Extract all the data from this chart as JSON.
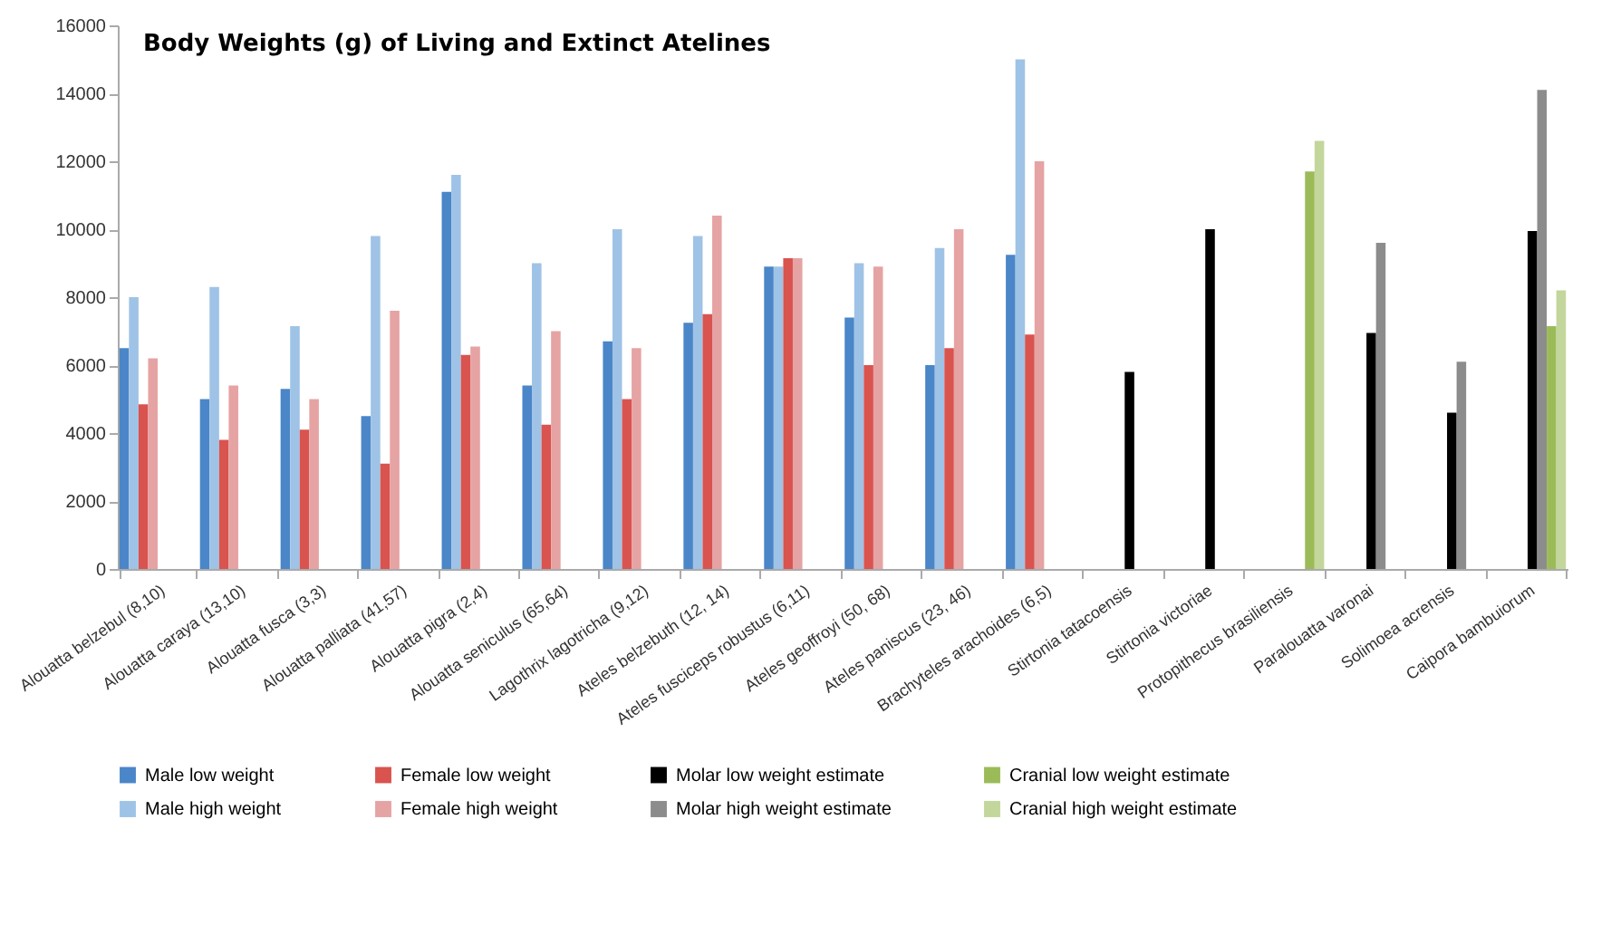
{
  "chart_data": {
    "type": "bar",
    "title": "Body Weights (g) of Living and Extinct Atelines",
    "categories": [
      "Alouatta belzebul (8,10)",
      "Alouatta caraya (13,10)",
      "Alouatta fusca (3,3)",
      "Alouatta palliata (41,57)",
      "Alouatta pigra (2,4)",
      "Alouatta seniculus (65,64)",
      "Lagothrix lagotricha (9,12)",
      "Ateles belzebuth (12, 14)",
      "Ateles fusciceps robustus (6,11)",
      "Ateles geoffroyi (50, 68)",
      "Ateles paniscus (23, 46)",
      "Brachyteles arachoides (6,5)",
      "Stirtonia tatacoensis",
      "Stirtonia victoriae",
      "Protopithecus brasiliensis",
      "Paralouatta varonai",
      "Solimoea acrensis",
      "Caipora bambuiorum"
    ],
    "series": [
      {
        "name": "Male low weight",
        "color": "#4a86c8",
        "values": [
          6500,
          5000,
          5300,
          4500,
          11100,
          5400,
          6700,
          7250,
          8900,
          7400,
          6000,
          9250,
          null,
          null,
          null,
          null,
          null,
          null
        ]
      },
      {
        "name": "Male high weight",
        "color": "#9fc3e6",
        "values": [
          8000,
          8300,
          7150,
          9800,
          11600,
          9000,
          10000,
          9800,
          8900,
          9000,
          9450,
          15000,
          null,
          null,
          null,
          null,
          null,
          null
        ]
      },
      {
        "name": "Female low weight",
        "color": "#d9534f",
        "values": [
          4850,
          3800,
          4100,
          3100,
          6300,
          4250,
          5000,
          7500,
          9150,
          6000,
          6500,
          6900,
          null,
          null,
          null,
          null,
          null,
          null
        ]
      },
      {
        "name": "Female high weight",
        "color": "#e6a3a3",
        "values": [
          6200,
          5400,
          5000,
          7600,
          6550,
          7000,
          6500,
          10400,
          9150,
          8900,
          10000,
          12000,
          null,
          null,
          null,
          null,
          null,
          null
        ]
      },
      {
        "name": "Molar low weight estimate",
        "color": "#000000",
        "values": [
          null,
          null,
          null,
          null,
          null,
          null,
          null,
          null,
          null,
          null,
          null,
          null,
          5800,
          10000,
          null,
          6950,
          4600,
          9950
        ]
      },
      {
        "name": "Molar high weight estimate",
        "color": "#8c8c8c",
        "values": [
          null,
          null,
          null,
          null,
          null,
          null,
          null,
          null,
          null,
          null,
          null,
          null,
          null,
          null,
          null,
          9600,
          6100,
          14100
        ]
      },
      {
        "name": "Cranial low weight estimate",
        "color": "#9bbb59",
        "values": [
          null,
          null,
          null,
          null,
          null,
          null,
          null,
          null,
          null,
          null,
          null,
          null,
          null,
          null,
          11700,
          null,
          null,
          7150
        ]
      },
      {
        "name": "Cranial high weight estimate",
        "color": "#c3d69b",
        "values": [
          null,
          null,
          null,
          null,
          null,
          null,
          null,
          null,
          null,
          null,
          null,
          null,
          null,
          null,
          12600,
          null,
          null,
          8200
        ]
      }
    ],
    "ylim": [
      0,
      16000
    ],
    "yticks": [
      0,
      2000,
      4000,
      6000,
      8000,
      10000,
      12000,
      14000,
      16000
    ],
    "grid": false,
    "legend": "bottom"
  }
}
